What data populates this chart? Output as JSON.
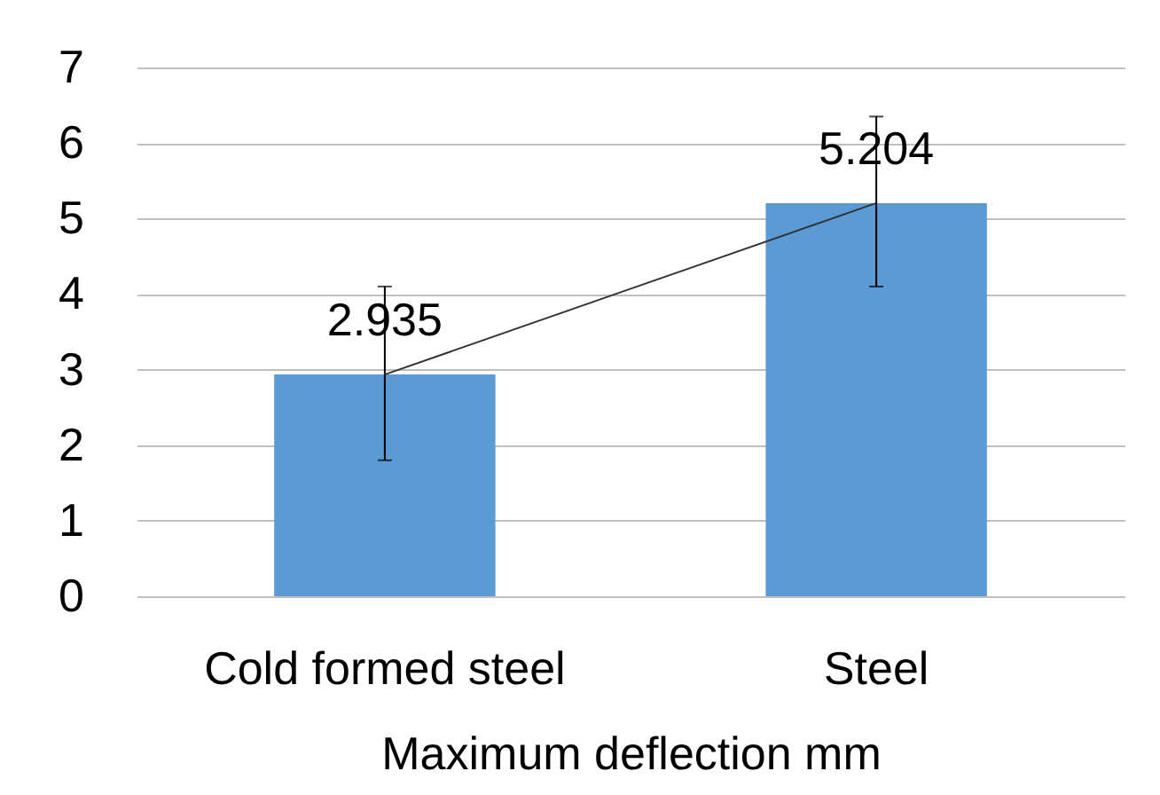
{
  "chart_data": {
    "type": "bar",
    "xlabel": "Maximum deflection mm",
    "categories": [
      "Cold formed steel",
      "Steel"
    ],
    "series": [
      {
        "color": "#5b9bd5",
        "values": [
          2.935,
          5.204
        ],
        "errors": [
          [
            1.8,
            4.1
          ],
          [
            4.1,
            6.35
          ]
        ],
        "data_labels": true
      },
      {
        "type": "line",
        "color": "#333333",
        "values": [
          2.935,
          5.204
        ],
        "marker": "none"
      }
    ],
    "ylim": [
      0,
      7
    ],
    "yticks": [
      0,
      1,
      2,
      3,
      4,
      5,
      6,
      7
    ],
    "grid": "y"
  }
}
